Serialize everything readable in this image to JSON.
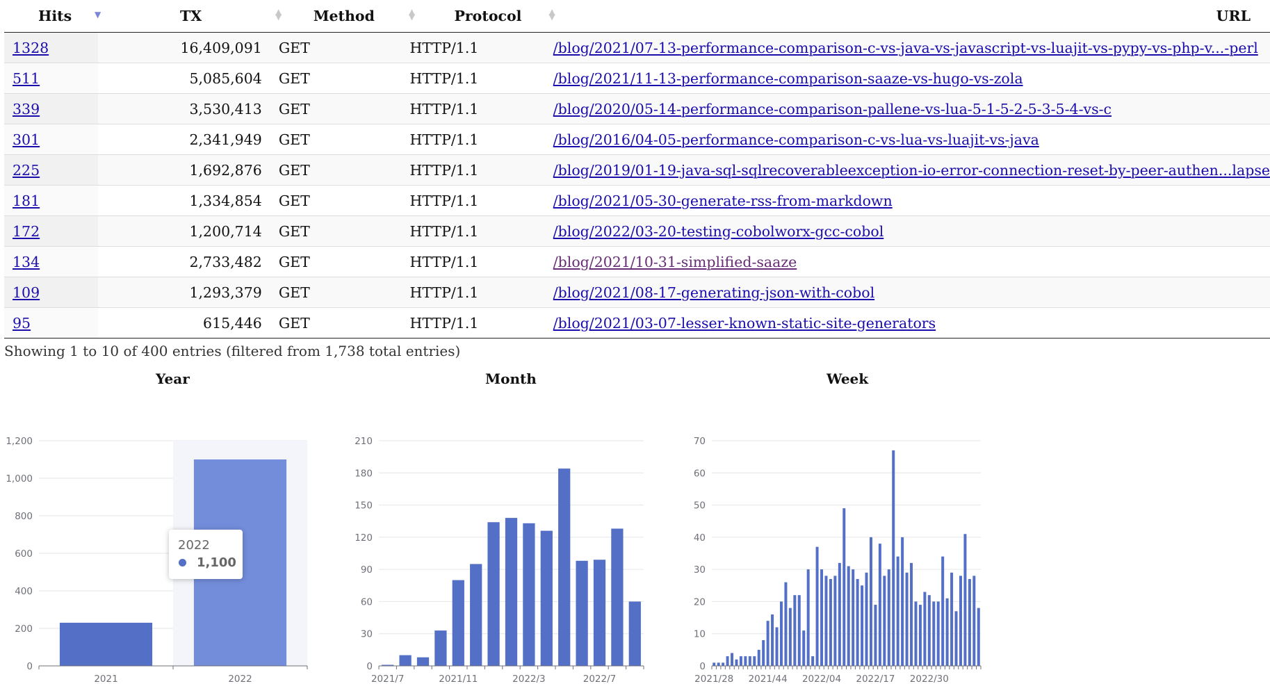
{
  "table": {
    "columns": [
      {
        "label": "Hits",
        "sort": "desc"
      },
      {
        "label": "TX",
        "sort": "both"
      },
      {
        "label": "Method",
        "sort": "both"
      },
      {
        "label": "Protocol",
        "sort": "both"
      },
      {
        "label": "URL",
        "sort": "none"
      }
    ],
    "rows": [
      {
        "hits": "1328",
        "tx": "16,409,091",
        "method": "GET",
        "protocol": "HTTP/1.1",
        "url": "/blog/2021/07-13-performance-comparison-c-vs-java-vs-javascript-vs-luajit-vs-pypy-vs-php-v...-perl"
      },
      {
        "hits": "511",
        "tx": "5,085,604",
        "method": "GET",
        "protocol": "HTTP/1.1",
        "url": "/blog/2021/11-13-performance-comparison-saaze-vs-hugo-vs-zola"
      },
      {
        "hits": "339",
        "tx": "3,530,413",
        "method": "GET",
        "protocol": "HTTP/1.1",
        "url": "/blog/2020/05-14-performance-comparison-pallene-vs-lua-5-1-5-2-5-3-5-4-vs-c"
      },
      {
        "hits": "301",
        "tx": "2,341,949",
        "method": "GET",
        "protocol": "HTTP/1.1",
        "url": "/blog/2016/04-05-performance-comparison-c-vs-lua-vs-luajit-vs-java"
      },
      {
        "hits": "225",
        "tx": "1,692,876",
        "method": "GET",
        "protocol": "HTTP/1.1",
        "url": "/blog/2019/01-19-java-sql-sqlrecoverableexception-io-error-connection-reset-by-peer-authen...lapse"
      },
      {
        "hits": "181",
        "tx": "1,334,854",
        "method": "GET",
        "protocol": "HTTP/1.1",
        "url": "/blog/2021/05-30-generate-rss-from-markdown"
      },
      {
        "hits": "172",
        "tx": "1,200,714",
        "method": "GET",
        "protocol": "HTTP/1.1",
        "url": "/blog/2022/03-20-testing-cobolworx-gcc-cobol"
      },
      {
        "hits": "134",
        "tx": "2,733,482",
        "method": "GET",
        "protocol": "HTTP/1.1",
        "url": "/blog/2021/10-31-simplified-saaze",
        "visited": true
      },
      {
        "hits": "109",
        "tx": "1,293,379",
        "method": "GET",
        "protocol": "HTTP/1.1",
        "url": "/blog/2021/08-17-generating-json-with-cobol"
      },
      {
        "hits": "95",
        "tx": "615,446",
        "method": "GET",
        "protocol": "HTTP/1.1",
        "url": "/blog/2021/03-07-lesser-known-static-site-generators"
      }
    ]
  },
  "info": "Showing 1 to 10 of 400 entries (filtered from 1,738 total entries)",
  "colors": {
    "bar": "#5470c6",
    "bar_highlight": "#738ddb",
    "link": "#1a0dab",
    "visited": "#662d75"
  },
  "tooltip": {
    "category": "2022",
    "value": "1,100"
  },
  "chart_data": [
    {
      "type": "bar",
      "title": "Year",
      "categories": [
        "2021",
        "2022"
      ],
      "values": [
        230,
        1100
      ],
      "ylim": [
        0,
        1200
      ],
      "yticks": [
        0,
        200,
        400,
        600,
        800,
        1000,
        1200
      ],
      "ytick_labels": [
        "0",
        "200",
        "400",
        "600",
        "800",
        "1,000",
        "1,200"
      ],
      "xtick_labels": [
        "2021",
        "2022"
      ],
      "highlight": 1
    },
    {
      "type": "bar",
      "title": "Month",
      "categories": [
        "2021/7",
        "2021/8",
        "2021/9",
        "2021/10",
        "2021/11",
        "2021/12",
        "2022/1",
        "2022/2",
        "2022/3",
        "2022/4",
        "2022/5",
        "2022/6",
        "2022/7",
        "2022/8",
        "2022/9"
      ],
      "values": [
        1,
        10,
        8,
        33,
        80,
        95,
        134,
        138,
        133,
        126,
        184,
        98,
        99,
        128,
        60
      ],
      "ylim": [
        0,
        210
      ],
      "yticks": [
        0,
        30,
        60,
        90,
        120,
        150,
        180,
        210
      ],
      "ytick_labels": [
        "0",
        "30",
        "60",
        "90",
        "120",
        "150",
        "180",
        "210"
      ],
      "xtick_labels": [
        "2021/7",
        "2021/11",
        "2022/3",
        "2022/7"
      ],
      "xtick_indices": [
        0,
        4,
        8,
        12
      ]
    },
    {
      "type": "bar",
      "title": "Week",
      "values": [
        1,
        1,
        1,
        3,
        4,
        2,
        3,
        3,
        3,
        3,
        5,
        8,
        14,
        16,
        12,
        20,
        26,
        18,
        22,
        22,
        11,
        30,
        3,
        37,
        30,
        28,
        27,
        28,
        32,
        49,
        31,
        30,
        27,
        25,
        29,
        40,
        19,
        38,
        28,
        30,
        67,
        34,
        40,
        29,
        32,
        20,
        19,
        23,
        22,
        20,
        20,
        34,
        21,
        29,
        17,
        28,
        41,
        27,
        28,
        18
      ],
      "ylim": [
        0,
        70
      ],
      "yticks": [
        0,
        10,
        20,
        30,
        40,
        50,
        60,
        70
      ],
      "ytick_labels": [
        "0",
        "10",
        "20",
        "30",
        "40",
        "50",
        "60",
        "70"
      ],
      "xtick_labels": [
        "2021/28",
        "2021/44",
        "2022/04",
        "2022/17",
        "2022/30"
      ],
      "xtick_indices": [
        0,
        12,
        24,
        36,
        48
      ]
    }
  ]
}
